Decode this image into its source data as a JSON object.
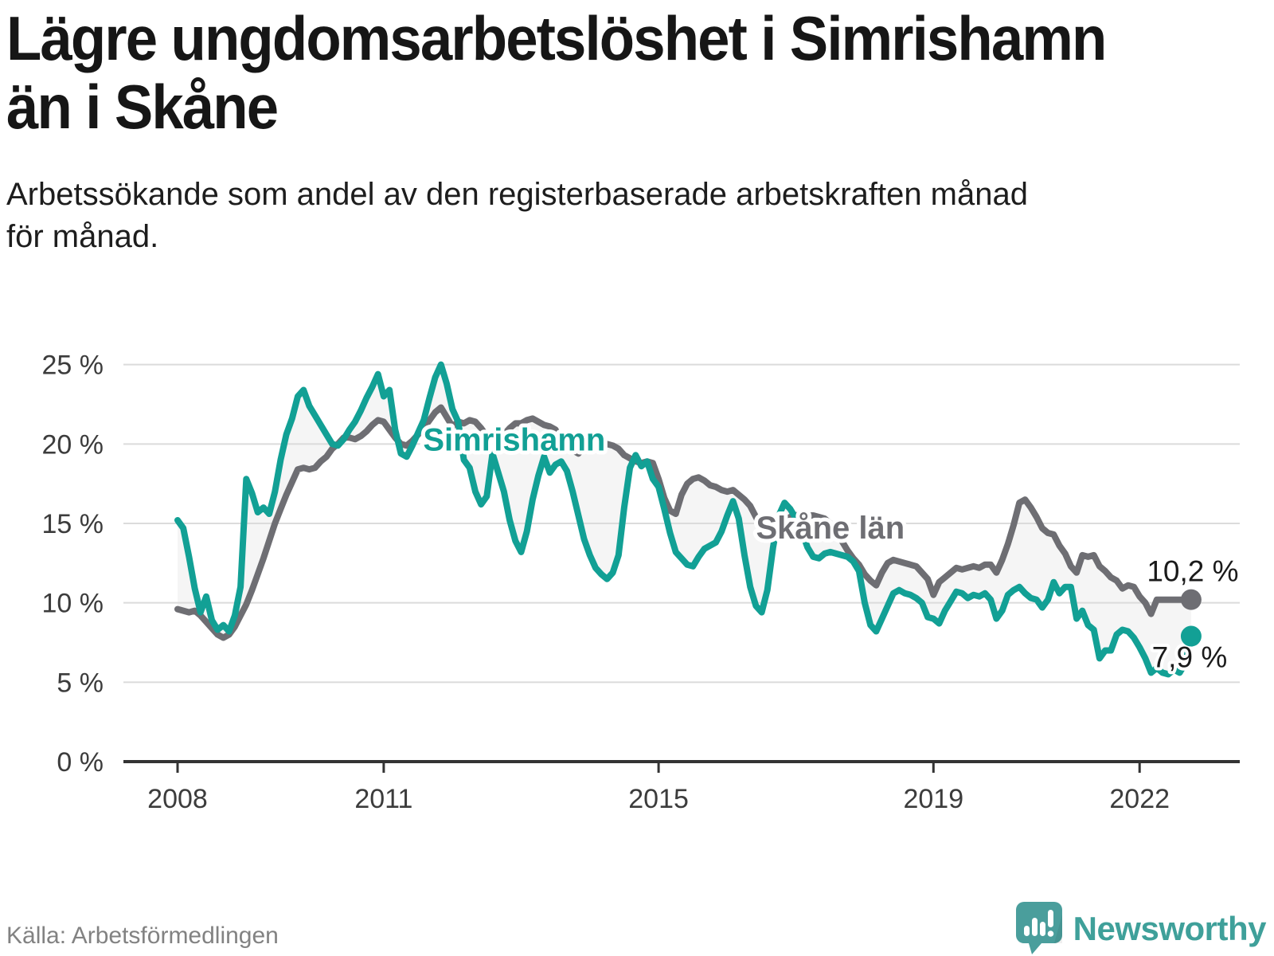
{
  "page": {
    "title": "Lägre ungdomsarbetslöshet i Simrishamn\nän i Skåne",
    "subtitle": "Arbetssökande som andel av den registerbaserade arbetskraften månad\nför månad.",
    "source": "Källa: Arbetsförmedlingen",
    "brand": "Newsworthy"
  },
  "colors": {
    "title_text": "#161616",
    "tick_text": "#3C3C3C",
    "gridline": "#DBDBDB",
    "axis": "#333333",
    "band_fill": "#999999",
    "end_label_text": "#1A1A1A",
    "source_text": "#828282",
    "logo_teal": "#4A9E9C",
    "brand_text": "#3FA09A",
    "halo": "#FFFFFF"
  },
  "chart_data": {
    "type": "line",
    "title": "Lägre ungdomsarbetslöshet i Simrishamn än i Skåne",
    "subtitle": "Arbetssökande som andel av den registerbaserade arbetskraften månad för månad.",
    "source": "Källa: Arbetsförmedlingen",
    "x_unit": "month",
    "x_start": "2008-01",
    "x_end": "2022-10",
    "x_tick_years": [
      2008,
      2011,
      2015,
      2019,
      2022
    ],
    "ylim": [
      0,
      25
    ],
    "yticks": [
      0,
      5,
      10,
      15,
      20,
      25
    ],
    "ytick_suffix": " %",
    "grid": "horizontal",
    "legend_position": "inline",
    "band_between_series": true,
    "end_dots": true,
    "series": [
      {
        "name": "Skåne län",
        "color": "#6E6E73",
        "end_label": "10,2 %",
        "end_value": 10.2,
        "values": [
          9.6,
          9.5,
          9.4,
          9.5,
          9.2,
          8.8,
          8.4,
          8.0,
          7.8,
          8.0,
          8.5,
          9.2,
          9.9,
          10.8,
          11.8,
          12.8,
          13.9,
          15.0,
          15.9,
          16.8,
          17.6,
          18.4,
          18.5,
          18.4,
          18.5,
          18.9,
          19.2,
          19.7,
          20.0,
          20.4,
          20.4,
          20.3,
          20.5,
          20.8,
          21.2,
          21.5,
          21.4,
          20.9,
          20.4,
          20.0,
          19.9,
          20.2,
          20.6,
          21.0,
          21.5,
          22.0,
          22.3,
          21.7,
          21.1,
          21.4,
          21.3,
          21.5,
          21.4,
          21.0,
          20.5,
          20.7,
          20.9,
          20.6,
          21.0,
          21.3,
          21.3,
          21.5,
          21.6,
          21.4,
          21.2,
          21.1,
          20.9,
          20.2,
          19.8,
          19.6,
          19.4,
          19.8,
          19.7,
          19.8,
          19.9,
          20.0,
          19.9,
          19.7,
          19.3,
          19.1,
          18.9,
          18.8,
          18.9,
          18.8,
          17.8,
          16.6,
          15.8,
          15.6,
          16.8,
          17.5,
          17.8,
          17.9,
          17.7,
          17.4,
          17.3,
          17.1,
          17.0,
          17.1,
          16.8,
          16.5,
          16.1,
          15.4,
          14.7,
          14.1,
          14.4,
          14.8,
          15.2,
          15.4,
          15.5,
          15.6,
          15.5,
          15.5,
          15.4,
          15.3,
          15.0,
          14.5,
          13.9,
          13.3,
          12.8,
          12.4,
          11.8,
          11.4,
          11.1,
          11.9,
          12.5,
          12.7,
          12.6,
          12.5,
          12.4,
          12.3,
          11.9,
          11.5,
          10.5,
          11.3,
          11.6,
          11.9,
          12.2,
          12.1,
          12.2,
          12.3,
          12.2,
          12.4,
          12.4,
          11.9,
          12.7,
          13.7,
          14.9,
          16.3,
          16.5,
          16.0,
          15.4,
          14.7,
          14.4,
          14.3,
          13.6,
          13.1,
          12.3,
          11.9,
          13.0,
          12.9,
          13.0,
          12.3,
          12.0,
          11.6,
          11.4,
          10.9,
          11.1,
          11.0,
          10.4,
          10.0,
          9.3,
          10.2,
          10.2,
          10.2,
          10.2,
          10.2,
          10.2,
          10.2
        ]
      },
      {
        "name": "Simrishamn",
        "color": "#12A095",
        "end_label": "7,9 %",
        "end_value": 7.9,
        "values": [
          15.2,
          14.7,
          12.9,
          10.9,
          9.4,
          10.4,
          8.9,
          8.3,
          8.6,
          8.2,
          9.2,
          11.0,
          17.8,
          16.9,
          15.7,
          16.0,
          15.6,
          17.0,
          19.0,
          20.6,
          21.6,
          23.0,
          23.4,
          22.4,
          21.8,
          21.2,
          20.6,
          20.0,
          19.9,
          20.3,
          20.9,
          21.4,
          22.1,
          22.9,
          23.6,
          24.4,
          23.0,
          23.4,
          20.9,
          19.4,
          19.2,
          19.9,
          20.7,
          21.5,
          22.9,
          24.2,
          25.0,
          23.8,
          22.2,
          21.4,
          19.0,
          18.5,
          17.0,
          16.2,
          16.7,
          19.4,
          18.2,
          17.0,
          15.2,
          13.9,
          13.2,
          14.5,
          16.5,
          18.0,
          19.2,
          18.2,
          18.7,
          18.9,
          18.3,
          17.0,
          15.5,
          14.0,
          13.0,
          12.2,
          11.8,
          11.5,
          11.9,
          13.0,
          16.0,
          18.5,
          19.3,
          18.6,
          18.9,
          17.8,
          17.3,
          15.9,
          14.4,
          13.2,
          12.8,
          12.4,
          12.3,
          12.9,
          13.4,
          13.6,
          13.8,
          14.5,
          15.5,
          16.4,
          15.3,
          13.0,
          11.0,
          9.8,
          9.4,
          10.8,
          13.5,
          15.5,
          16.3,
          15.9,
          15.3,
          14.5,
          13.5,
          12.9,
          12.8,
          13.1,
          13.2,
          13.1,
          13.0,
          12.9,
          12.6,
          12.0,
          10.0,
          8.6,
          8.2,
          9.0,
          9.8,
          10.6,
          10.8,
          10.6,
          10.5,
          10.3,
          10.0,
          9.1,
          9.0,
          8.7,
          9.5,
          10.1,
          10.7,
          10.6,
          10.3,
          10.5,
          10.4,
          10.6,
          10.2,
          9.0,
          9.5,
          10.5,
          10.8,
          11.0,
          10.6,
          10.3,
          10.2,
          9.7,
          10.2,
          11.3,
          10.6,
          11.0,
          11.0,
          9.0,
          9.5,
          8.6,
          8.3,
          6.5,
          7.0,
          7.0,
          8.0,
          8.3,
          8.2,
          7.8,
          7.2,
          6.5,
          5.6,
          5.9,
          5.6,
          5.5,
          5.8,
          5.6,
          6.2,
          7.9
        ]
      }
    ],
    "inline_labels": [
      {
        "text": "Simrishamn",
        "x": 2012.9,
        "y": 20.3,
        "color": "#12A095"
      },
      {
        "text": "Skåne län",
        "x": 2017.5,
        "y": 14.75,
        "color": "#6E6E73"
      }
    ]
  }
}
